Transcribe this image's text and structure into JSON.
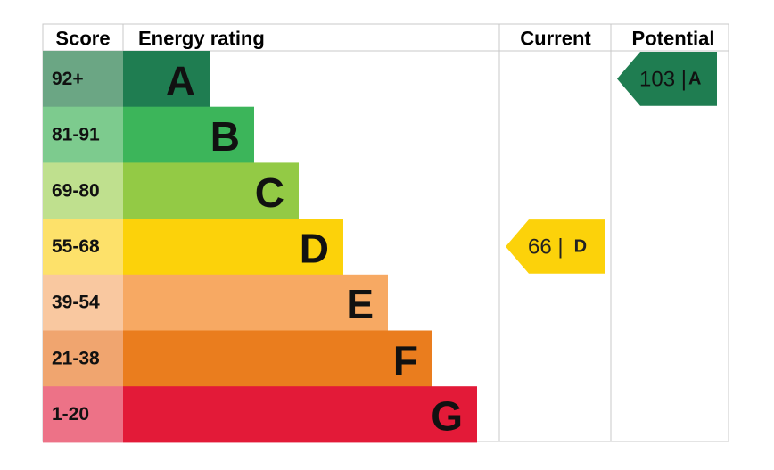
{
  "header": {
    "score": "Score",
    "rating": "Energy rating",
    "current": "Current",
    "potential": "Potential"
  },
  "bands": [
    {
      "score": "92+",
      "letter": "A",
      "color": "#1f7d51",
      "score_color": "#6ba684"
    },
    {
      "score": "81-91",
      "letter": "B",
      "color": "#3cb55a",
      "score_color": "#7dcb8e"
    },
    {
      "score": "69-80",
      "letter": "C",
      "color": "#93ca45",
      "score_color": "#bfe08e"
    },
    {
      "score": "55-68",
      "letter": "D",
      "color": "#fcd20a",
      "score_color": "#fde16a"
    },
    {
      "score": "39-54",
      "letter": "E",
      "color": "#f7a963",
      "score_color": "#f9c8a0"
    },
    {
      "score": "21-38",
      "letter": "F",
      "color": "#ea7d1e",
      "score_color": "#f0a56f"
    },
    {
      "score": "1-20",
      "letter": "G",
      "color": "#e31a38",
      "score_color": "#ed7287"
    }
  ],
  "current": {
    "value": "66 |",
    "letter": "D"
  },
  "potential": {
    "value": "103 |",
    "letter": "A"
  }
}
